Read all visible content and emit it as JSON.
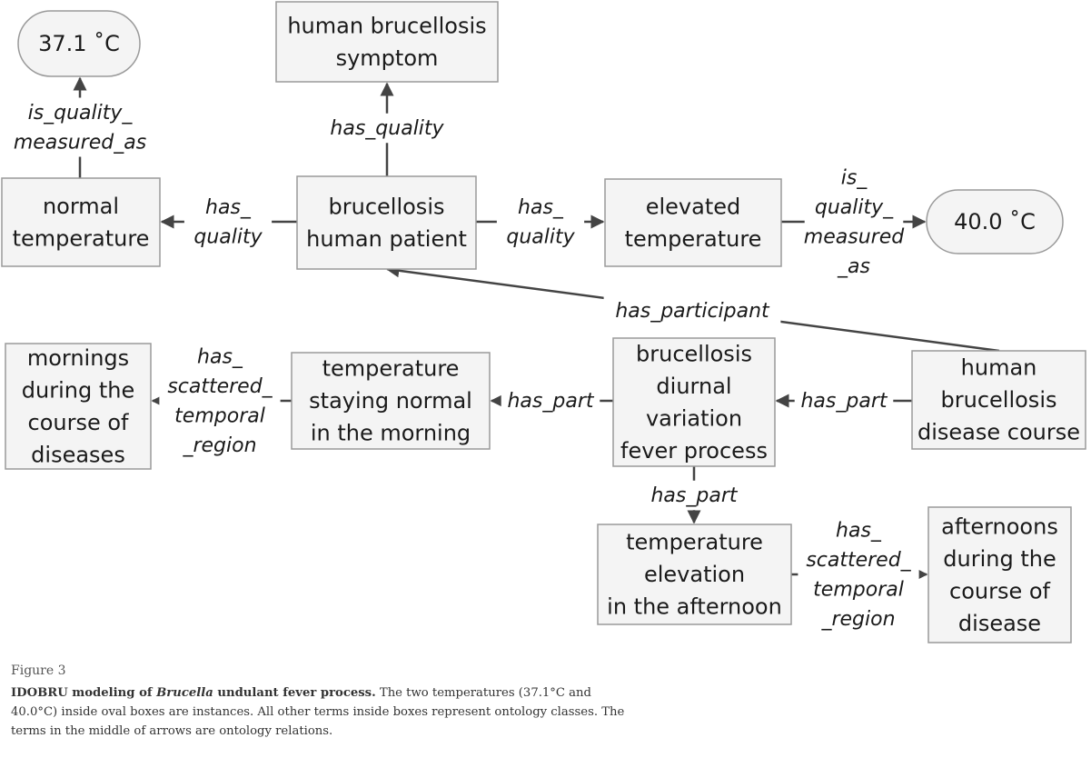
{
  "diagram": {
    "nodes": {
      "normal_value": [
        "37.1 ˚C"
      ],
      "symptom": [
        "human brucellosis",
        "symptom"
      ],
      "normal_temp": [
        "normal",
        "temperature"
      ],
      "patient": [
        "brucellosis",
        "human patient"
      ],
      "elevated_temp": [
        "elevated",
        "temperature"
      ],
      "elevated_value": [
        "40.0 ˚C"
      ],
      "mornings": [
        "mornings",
        "during the",
        "course of",
        "diseases"
      ],
      "temp_normal_morning": [
        "temperature",
        "staying normal",
        "in the morning"
      ],
      "diurnal": [
        "brucellosis",
        "diurnal",
        "variation",
        "fever process"
      ],
      "disease_course": [
        "human",
        "brucellosis",
        "disease course"
      ],
      "temp_elevation_afternoon": [
        "temperature",
        "elevation",
        "in the afternoon"
      ],
      "afternoons": [
        "afternoons",
        "during the",
        "course of",
        "disease"
      ]
    },
    "edges": {
      "is_quality_measured_normal": [
        "is_quality_",
        "measured_as"
      ],
      "has_quality_symptom": [
        "has_quality"
      ],
      "has_quality_normal": [
        "has_",
        "quality"
      ],
      "has_quality_elevated": [
        "has_",
        "quality"
      ],
      "is_quality_measured_elevated": [
        "is_",
        "quality_",
        "measured",
        "_as"
      ],
      "has_participant": [
        "has_participant"
      ],
      "has_part_disease_diurnal": [
        "has_part"
      ],
      "has_part_diurnal_morning": [
        "has_part"
      ],
      "has_scattered_morning": [
        "has_",
        "scattered_",
        "temporal",
        "_region"
      ],
      "has_part_diurnal_afternoon": [
        "has_part"
      ],
      "has_scattered_afternoon": [
        "has_",
        "scattered_",
        "temporal",
        "_region"
      ]
    }
  },
  "caption": {
    "figure_number": "Figure 3",
    "bold_prefix": "IDOBRU modeling of ",
    "bold_italic": "Brucella",
    "bold_suffix": " undulant fever process.",
    "text": " The two temperatures (37.1°C and 40.0°C) inside oval boxes are instances. All other terms inside boxes represent ontology classes. The terms in the middle of arrows are ontology relations."
  }
}
